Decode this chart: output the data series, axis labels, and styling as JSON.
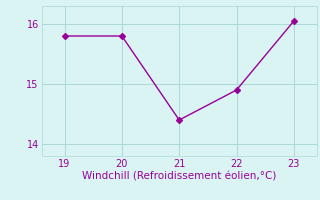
{
  "x": [
    19,
    20,
    21,
    22,
    23
  ],
  "y": [
    15.8,
    15.8,
    14.4,
    14.9,
    16.05
  ],
  "line_color": "#990099",
  "marker": "D",
  "marker_size": 3,
  "xlabel": "Windchill (Refroidissement éolien,°C)",
  "xlabel_color": "#990099",
  "xlabel_fontsize": 7.5,
  "background_color": "#daf4f4",
  "grid_color": "#aed8d8",
  "tick_color": "#990099",
  "tick_fontsize": 7,
  "xlim": [
    18.6,
    23.4
  ],
  "ylim": [
    13.8,
    16.3
  ],
  "yticks": [
    14,
    15,
    16
  ],
  "xticks": [
    19,
    20,
    21,
    22,
    23
  ]
}
